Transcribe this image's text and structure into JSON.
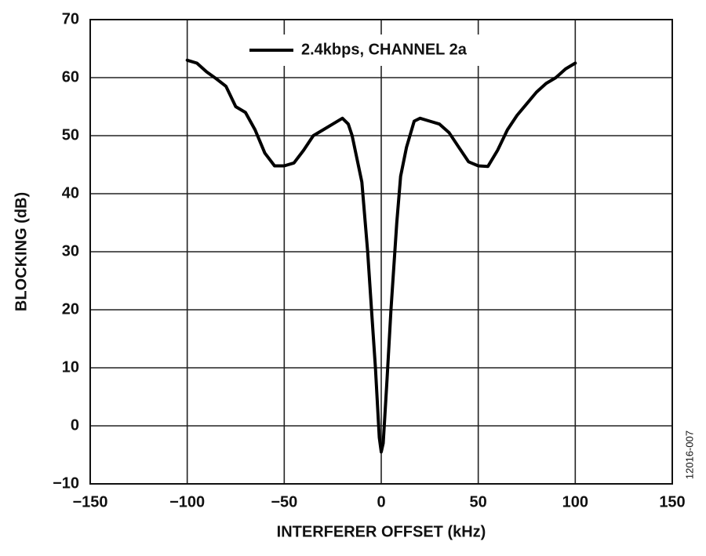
{
  "chart_data": {
    "type": "line",
    "xlabel": "INTERFERER OFFSET (kHz)",
    "ylabel": "BLOCKING (dB)",
    "figure_id": "12016-007",
    "x": [
      -100,
      -95,
      -90,
      -85,
      -80,
      -75,
      -70,
      -65,
      -60,
      -55,
      -50,
      -45,
      -40,
      -35,
      -30,
      -25,
      -20,
      -17,
      -15,
      -10,
      -7,
      -5,
      -3,
      -1,
      0,
      1,
      3,
      5,
      8,
      10,
      13,
      17,
      20,
      25,
      30,
      35,
      40,
      45,
      50,
      55,
      60,
      65,
      70,
      75,
      80,
      85,
      90,
      95,
      100
    ],
    "series": [
      {
        "name": "2.4kbps, CHANNEL 2a",
        "color": "#000000",
        "values": [
          63,
          62.5,
          61,
          59.8,
          58.5,
          55,
          54,
          51,
          47,
          44.8,
          44.8,
          45.3,
          47.5,
          50,
          51,
          52,
          53,
          52,
          50,
          42,
          30,
          20,
          10,
          -2,
          -4.5,
          -3,
          8,
          20,
          35,
          43,
          48,
          52.5,
          53,
          52.5,
          52,
          50.5,
          48,
          45.5,
          44.8,
          44.7,
          47.5,
          51,
          53.5,
          55.5,
          57.5,
          59,
          60,
          61.5,
          62.5
        ]
      }
    ],
    "xlim": [
      -150,
      150
    ],
    "xticks": [
      {
        "value": -150,
        "label": "−150"
      },
      {
        "value": -100,
        "label": "−100"
      },
      {
        "value": -50,
        "label": "−50"
      },
      0,
      50,
      100,
      150
    ],
    "ylim": [
      -10,
      70
    ],
    "yticks": [
      {
        "value": -10,
        "label": "−10"
      },
      0,
      10,
      20,
      30,
      40,
      50,
      60,
      70
    ],
    "grid": true,
    "legend": "top"
  }
}
